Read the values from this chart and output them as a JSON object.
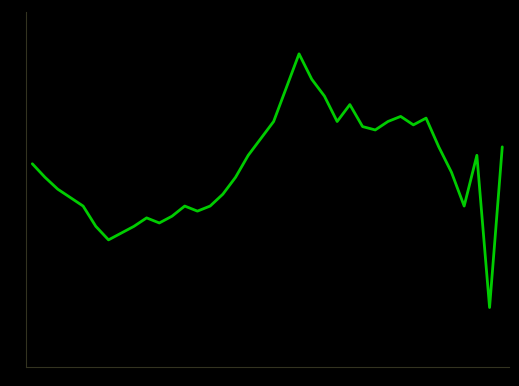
{
  "title": "",
  "background_color": "#000000",
  "line_color": "#00cc00",
  "line_width": 2.0,
  "x_values": [
    0,
    1,
    2,
    3,
    4,
    5,
    6,
    7,
    8,
    9,
    10,
    11,
    12,
    13,
    14,
    15,
    16,
    17,
    18,
    19,
    20,
    21,
    22,
    23,
    24,
    25,
    26,
    27,
    28,
    29,
    30,
    31,
    32,
    33,
    34,
    35,
    36,
    37
  ],
  "y_values": [
    22.0,
    21.2,
    20.5,
    20.0,
    19.5,
    18.3,
    17.5,
    17.9,
    18.3,
    18.8,
    18.5,
    18.9,
    19.5,
    19.2,
    19.5,
    20.2,
    21.2,
    22.5,
    23.5,
    24.5,
    26.5,
    28.5,
    27.0,
    26.0,
    24.5,
    25.5,
    24.2,
    24.0,
    24.5,
    24.8,
    24.3,
    24.7,
    23.0,
    21.5,
    19.5,
    22.5,
    13.5,
    23.0
  ],
  "spine_color": "#333320",
  "ylim": [
    10,
    31
  ],
  "xlim": [
    -0.5,
    37.5
  ]
}
